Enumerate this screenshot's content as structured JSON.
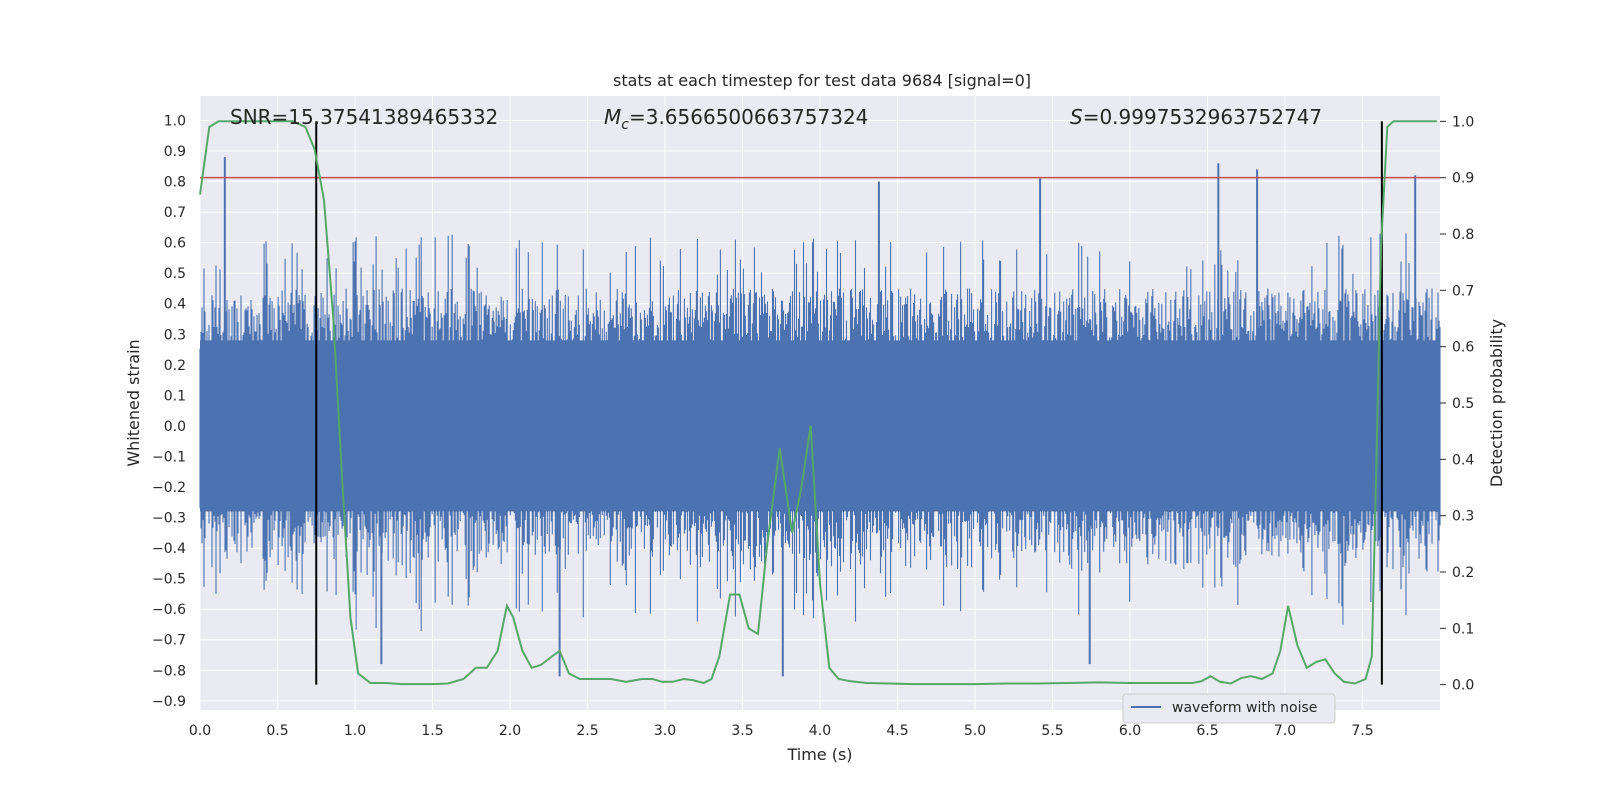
{
  "chart_data": {
    "type": "line",
    "title": "stats at each timestep for test data 9684 [signal=0]",
    "xlabel": "Time (s)",
    "ylabel": "Whitened strain",
    "y2label": "Detection probability",
    "xlim": [
      0.0,
      8.0
    ],
    "ylim": [
      -0.93,
      1.08
    ],
    "y2lim": [
      -0.045,
      1.045
    ],
    "x_ticks": [
      "0.0",
      "0.5",
      "1.0",
      "1.5",
      "2.0",
      "2.5",
      "3.0",
      "3.5",
      "4.0",
      "4.5",
      "5.0",
      "5.5",
      "6.0",
      "6.5",
      "7.0",
      "7.5"
    ],
    "y_ticks": [
      "-0.9",
      "-0.8",
      "-0.7",
      "-0.6",
      "-0.5",
      "-0.4",
      "-0.3",
      "-0.2",
      "-0.1",
      "0.0",
      "0.1",
      "0.2",
      "0.3",
      "0.4",
      "0.5",
      "0.6",
      "0.7",
      "0.8",
      "0.9",
      "1.0"
    ],
    "y2_ticks": [
      "0.0",
      "0.1",
      "0.2",
      "0.3",
      "0.4",
      "0.5",
      "0.6",
      "0.7",
      "0.8",
      "0.9",
      "1.0"
    ],
    "grid": true,
    "legend_position": "lower-right",
    "annotations": {
      "snr": "SNR=15.37541389465332",
      "mc_symbol": "M",
      "mc_sub": "c",
      "mc_value": "=3.6566500663757324",
      "s_symbol": "S",
      "s_value": "=0.9997532963752747"
    },
    "colors": {
      "waveform": "#4c72b0",
      "probability": "#55a868",
      "threshold": "#c44e52",
      "marker": "#000000",
      "background": "#eaeaf2",
      "grid": "#ffffff"
    },
    "series": [
      {
        "name": "waveform with noise",
        "style": "dense noisy waveform",
        "x_range": [
          0.0,
          8.0
        ],
        "typical_envelope": [
          -0.45,
          0.45
        ],
        "peaks": [
          {
            "x": 0.16,
            "y": 0.88
          },
          {
            "x": 4.38,
            "y": 0.8
          },
          {
            "x": 5.42,
            "y": 0.81
          },
          {
            "x": 6.57,
            "y": 0.86
          },
          {
            "x": 6.82,
            "y": 0.84
          },
          {
            "x": 7.84,
            "y": 0.82
          },
          {
            "x": 2.32,
            "y": -0.82
          },
          {
            "x": 3.76,
            "y": -0.82
          },
          {
            "x": 5.74,
            "y": -0.78
          },
          {
            "x": 1.17,
            "y": -0.78
          }
        ]
      },
      {
        "axis": "right",
        "x": [
          0.0,
          0.06,
          0.12,
          0.2,
          0.3,
          0.4,
          0.5,
          0.6,
          0.68,
          0.74,
          0.8,
          0.86,
          0.92,
          0.97,
          1.02,
          1.1,
          1.2,
          1.3,
          1.4,
          1.5,
          1.6,
          1.7,
          1.78,
          1.85,
          1.92,
          1.98,
          2.02,
          2.08,
          2.14,
          2.2,
          2.27,
          2.32,
          2.38,
          2.45,
          2.55,
          2.65,
          2.75,
          2.85,
          2.92,
          2.98,
          3.05,
          3.12,
          3.18,
          3.25,
          3.3,
          3.35,
          3.42,
          3.48,
          3.54,
          3.6,
          3.66,
          3.74,
          3.82,
          3.88,
          3.94,
          4.0,
          4.06,
          4.12,
          4.2,
          4.3,
          4.45,
          4.6,
          4.8,
          5.0,
          5.2,
          5.4,
          5.6,
          5.8,
          6.0,
          6.2,
          6.4,
          6.46,
          6.52,
          6.58,
          6.65,
          6.72,
          6.78,
          6.85,
          6.92,
          6.97,
          7.02,
          7.08,
          7.14,
          7.2,
          7.26,
          7.32,
          7.38,
          7.45,
          7.52,
          7.56,
          7.59,
          7.62,
          7.66,
          7.7,
          7.74,
          7.8,
          7.9,
          7.98
        ],
        "y": [
          0.87,
          0.99,
          1.0,
          1.0,
          1.0,
          1.0,
          1.0,
          1.0,
          0.99,
          0.95,
          0.86,
          0.65,
          0.35,
          0.12,
          0.02,
          0.003,
          0.003,
          0.001,
          0.001,
          0.001,
          0.002,
          0.01,
          0.03,
          0.03,
          0.06,
          0.14,
          0.12,
          0.06,
          0.03,
          0.035,
          0.05,
          0.06,
          0.02,
          0.01,
          0.01,
          0.01,
          0.005,
          0.01,
          0.01,
          0.005,
          0.005,
          0.01,
          0.008,
          0.003,
          0.01,
          0.05,
          0.16,
          0.16,
          0.1,
          0.09,
          0.25,
          0.42,
          0.27,
          0.35,
          0.46,
          0.18,
          0.03,
          0.01,
          0.006,
          0.003,
          0.002,
          0.001,
          0.001,
          0.001,
          0.002,
          0.002,
          0.003,
          0.004,
          0.003,
          0.003,
          0.003,
          0.006,
          0.015,
          0.005,
          0.002,
          0.012,
          0.015,
          0.01,
          0.02,
          0.06,
          0.14,
          0.07,
          0.03,
          0.04,
          0.045,
          0.02,
          0.005,
          0.002,
          0.01,
          0.05,
          0.4,
          0.78,
          0.99,
          1.0,
          1.0,
          1.0,
          1.0,
          1.0
        ]
      }
    ],
    "threshold_right": 0.9,
    "markers_x": [
      0.75,
      7.625
    ]
  }
}
